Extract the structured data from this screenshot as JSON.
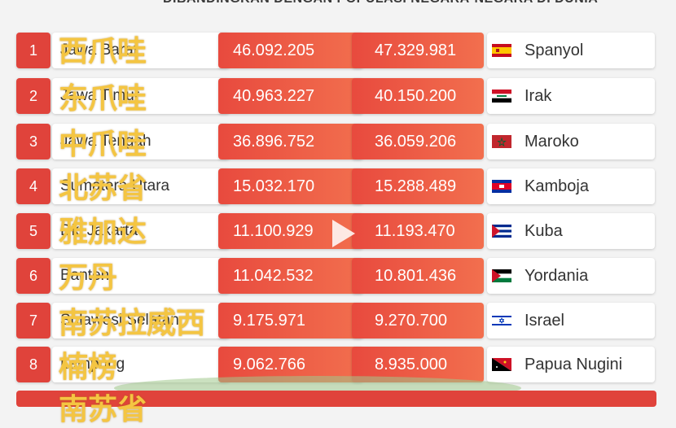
{
  "header": "DIBANDINGKAN DENGAN POPULASI NEGARA-NEGARA DI DUNIA",
  "rows": [
    {
      "rank": "1",
      "province": "Jawa Barat",
      "pop_a": "46.092.205",
      "pop_b": "47.329.981",
      "country": "Spanyol",
      "flag": "spain-flag-icon",
      "overlay": "西爪哇"
    },
    {
      "rank": "2",
      "province": "Jawa Timur",
      "pop_a": "40.963.227",
      "pop_b": "40.150.200",
      "country": "Irak",
      "flag": "iraq-flag-icon",
      "overlay": "东爪哇"
    },
    {
      "rank": "3",
      "province": "Jawa Tengah",
      "pop_a": "36.896.752",
      "pop_b": "36.059.206",
      "country": "Maroko",
      "flag": "morocco-flag-icon",
      "overlay": "中爪哇"
    },
    {
      "rank": "4",
      "province": "Sumatera Utara",
      "pop_a": "15.032.170",
      "pop_b": "15.288.489",
      "country": "Kamboja",
      "flag": "cambodia-flag-icon",
      "overlay": "北苏省"
    },
    {
      "rank": "5",
      "province": "Dki Jakarta",
      "pop_a": "11.100.929",
      "pop_b": "11.193.470",
      "country": "Kuba",
      "flag": "cuba-flag-icon",
      "overlay": "雅加达"
    },
    {
      "rank": "6",
      "province": "Banten",
      "pop_a": "11.042.532",
      "pop_b": "10.801.436",
      "country": "Yordania",
      "flag": "jordan-flag-icon",
      "overlay": "万丹"
    },
    {
      "rank": "7",
      "province": "Sulawesi Selatan",
      "pop_a": "9.175.971",
      "pop_b": "9.270.700",
      "country": "Israel",
      "flag": "israel-flag-icon",
      "overlay": "南苏拉威西"
    },
    {
      "rank": "8",
      "province": "Lampung",
      "pop_a": "9.062.766",
      "pop_b": "8.935.000",
      "country": "Papua Nugini",
      "flag": "png-flag-icon",
      "overlay": "楠榜"
    }
  ],
  "partial_overlay": "南苏省",
  "colors": {
    "accent": "#e0433b",
    "overlay_text": "#f4c542"
  }
}
